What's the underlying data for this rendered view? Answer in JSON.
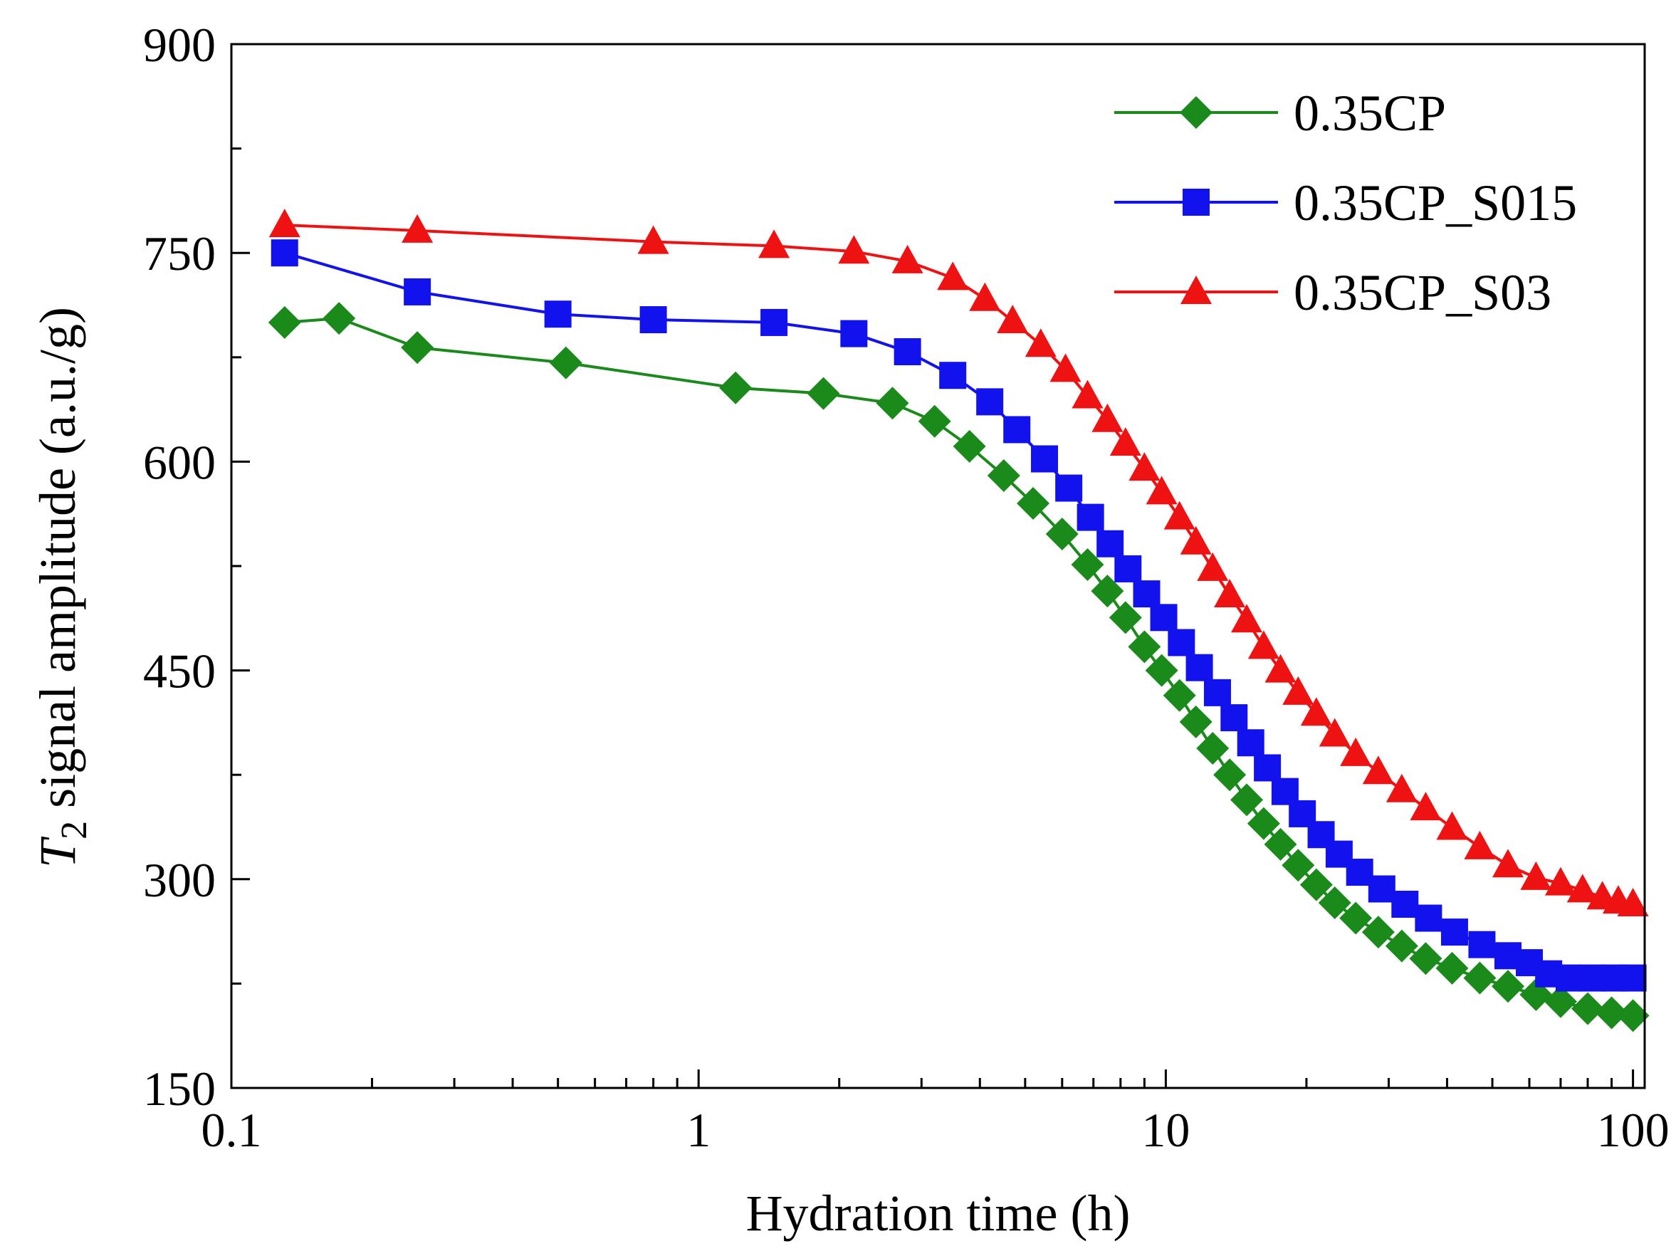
{
  "chart_data": {
    "type": "line",
    "xlabel": "Hydration time (h)",
    "ylabel": {
      "prefix": "T",
      "subscript": "2",
      "rest": " signal amplitude (a.u./g)"
    },
    "x_scale": "log",
    "xlim": [
      0.1,
      100
    ],
    "ylim": [
      150,
      900
    ],
    "x_ticks": [
      {
        "value": 0.1,
        "label": "0.1"
      },
      {
        "value": 1,
        "label": "1"
      },
      {
        "value": 10,
        "label": "10"
      },
      {
        "value": 100,
        "label": "100"
      }
    ],
    "y_ticks": [
      {
        "value": 150,
        "label": "150"
      },
      {
        "value": 300,
        "label": "300"
      },
      {
        "value": 450,
        "label": "450"
      },
      {
        "value": 600,
        "label": "600"
      },
      {
        "value": 750,
        "label": "750"
      },
      {
        "value": 900,
        "label": "900"
      }
    ],
    "grid": false,
    "legend_position": "top-right",
    "series": [
      {
        "name": "0.35CP",
        "color": "#1a8a1a",
        "marker": "diamond",
        "x": [
          0.13,
          0.17,
          0.25,
          0.52,
          1.2,
          1.85,
          2.6,
          3.2,
          3.8,
          4.5,
          5.2,
          6.0,
          6.8,
          7.5,
          8.2,
          9.0,
          9.8,
          10.7,
          11.6,
          12.6,
          13.7,
          14.9,
          16.2,
          17.6,
          19.2,
          21,
          23,
          25.5,
          28.5,
          32,
          36,
          41,
          47,
          54,
          62,
          70,
          80,
          90,
          100
        ],
        "y": [
          700,
          703,
          682,
          671,
          653,
          649,
          642,
          629,
          611,
          590,
          570,
          548,
          526,
          507,
          488,
          467,
          450,
          432,
          413,
          394,
          375,
          357,
          340,
          325,
          310,
          296,
          283,
          272,
          262,
          252,
          243,
          236,
          229,
          223,
          217,
          212,
          207,
          204,
          202
        ]
      },
      {
        "name": "0.35CP_S015",
        "color": "#1212ee",
        "marker": "square",
        "x": [
          0.13,
          0.25,
          0.5,
          0.8,
          1.45,
          2.15,
          2.8,
          3.5,
          4.2,
          4.8,
          5.5,
          6.2,
          6.9,
          7.6,
          8.3,
          9.1,
          9.9,
          10.8,
          11.8,
          12.9,
          14.0,
          15.2,
          16.5,
          18.0,
          19.6,
          21.5,
          23.5,
          26,
          29,
          32.5,
          36.5,
          41.5,
          47.5,
          54,
          60,
          66,
          73,
          82,
          91,
          100
        ],
        "y": [
          750,
          722,
          706,
          702,
          700,
          692,
          679,
          662,
          643,
          623,
          602,
          581,
          560,
          541,
          523,
          505,
          488,
          470,
          452,
          434,
          416,
          398,
          380,
          363,
          347,
          332,
          318,
          305,
          293,
          282,
          272,
          262,
          253,
          245,
          240,
          232,
          229,
          229,
          229,
          229
        ]
      },
      {
        "name": "0.35CP_S03",
        "color": "#ee1212",
        "marker": "triangle",
        "x": [
          0.13,
          0.25,
          0.8,
          1.45,
          2.15,
          2.8,
          3.5,
          4.1,
          4.7,
          5.4,
          6.1,
          6.8,
          7.5,
          8.2,
          9.0,
          9.8,
          10.7,
          11.6,
          12.6,
          13.7,
          14.9,
          16.2,
          17.6,
          19.2,
          21,
          23,
          25.5,
          28.5,
          32,
          36,
          41,
          47,
          54,
          62,
          70,
          78,
          86,
          93,
          100
        ],
        "y": [
          770,
          766,
          758,
          755,
          751,
          744,
          732,
          717,
          701,
          684,
          666,
          647,
          630,
          613,
          595,
          578,
          560,
          542,
          523,
          504,
          486,
          467,
          450,
          434,
          419,
          404,
          390,
          377,
          364,
          351,
          337,
          323,
          310,
          301,
          297,
          292,
          287,
          284,
          282
        ]
      }
    ]
  }
}
